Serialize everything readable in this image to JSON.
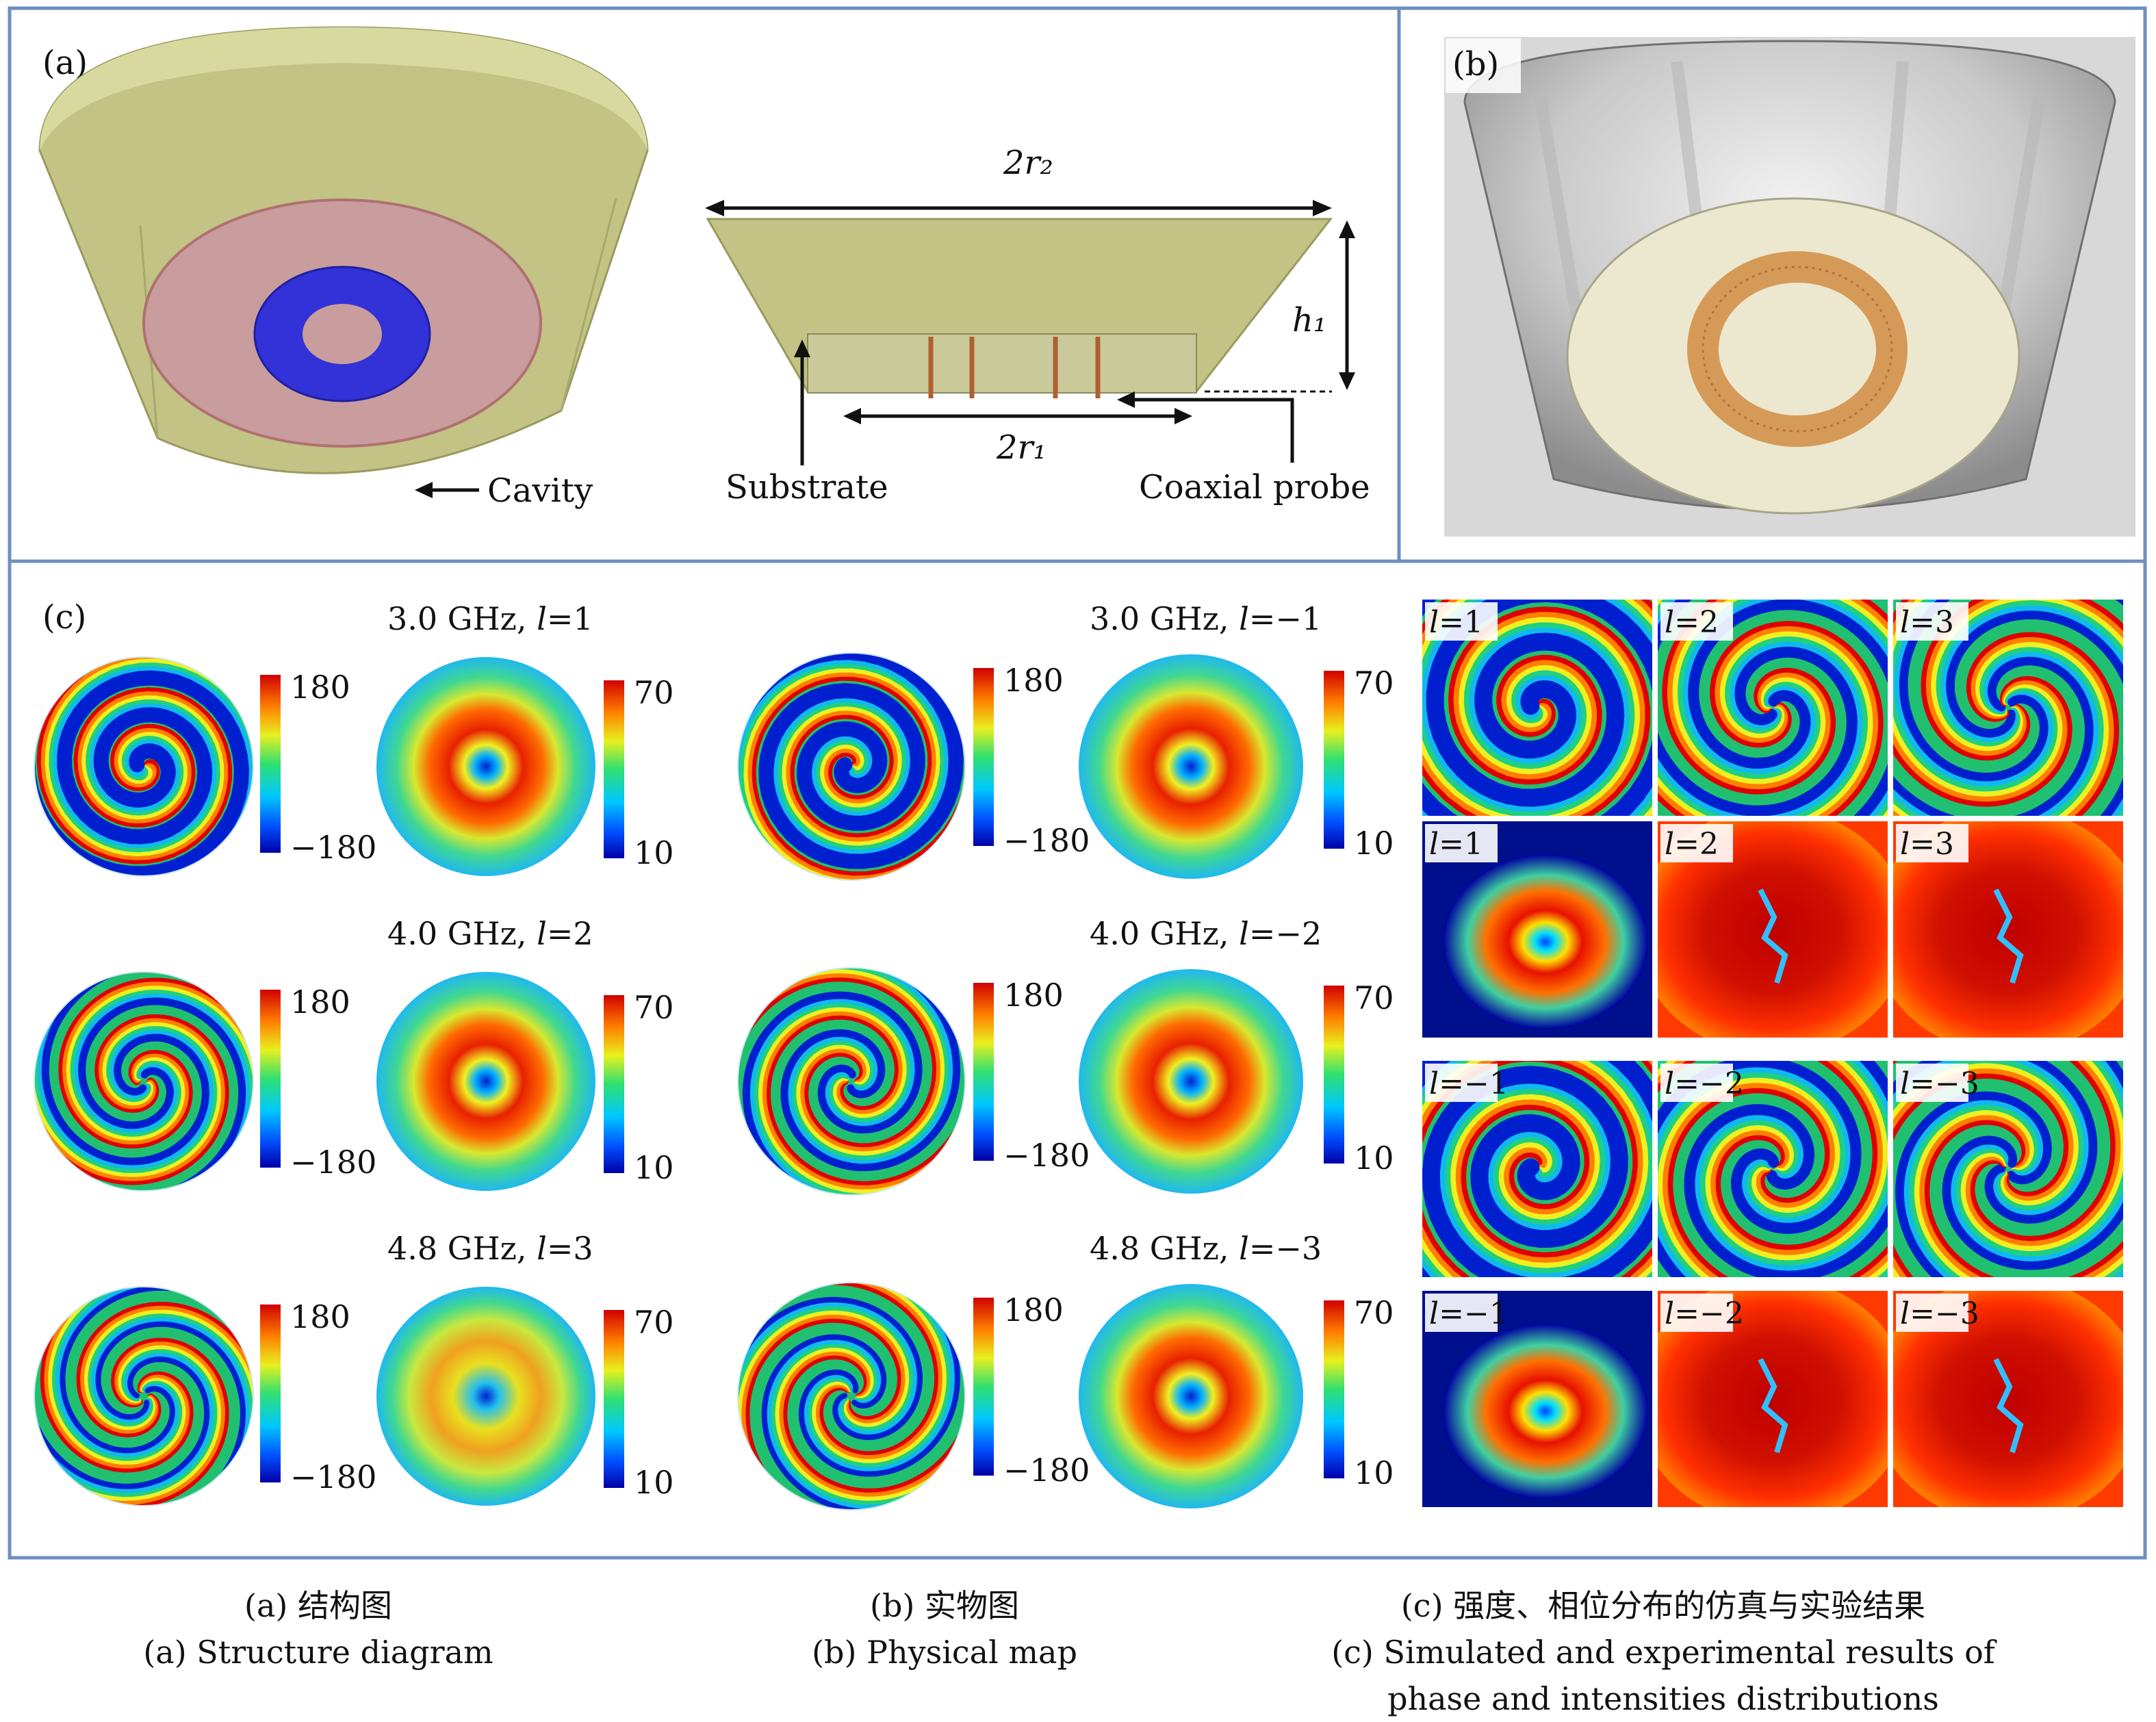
{
  "panel_a": {
    "label": "(a)",
    "dim_top": "2r₂",
    "dim_height": "h₁",
    "dim_bottom": "2r₁",
    "cavity": "Cavity",
    "substrate": "Substrate",
    "probe": "Coaxial probe"
  },
  "panel_b": {
    "label": "(b)"
  },
  "panel_c": {
    "label": "(c)",
    "rows": [
      {
        "left_title": "3.0 GHz, l=1",
        "right_title": "3.0 GHz, l=−1",
        "phase_max": "180",
        "phase_min": "−180",
        "int_max": "70",
        "int_min": "10"
      },
      {
        "left_title": "4.0 GHz, l=2",
        "right_title": "4.0 GHz, l=−2",
        "phase_max": "180",
        "phase_min": "−180",
        "int_max": "70",
        "int_min": "10"
      },
      {
        "left_title": "4.8 GHz, l=3",
        "right_title": "4.8 GHz, l=−3",
        "phase_max": "180",
        "phase_min": "−180",
        "int_max": "70",
        "int_min": "10"
      }
    ],
    "grid_labels": [
      [
        "l=1",
        "l=2",
        "l=3"
      ],
      [
        "l=1",
        "l=2",
        "l=3"
      ],
      [
        "l=−1",
        "l=−2",
        "l=−3"
      ],
      [
        "l=−1",
        "l=−2",
        "l=−3"
      ]
    ]
  },
  "captions": [
    {
      "cn": "(a) 结构图",
      "en": [
        "(a) Structure diagram"
      ]
    },
    {
      "cn": "(b) 实物图",
      "en": [
        "(b) Physical map"
      ]
    },
    {
      "cn": "(c) 强度、相位分布的仿真与实验结果",
      "en": [
        "(c) Simulated and experimental results of",
        "phase and intensities distributions"
      ]
    }
  ],
  "colors": {
    "frame": "#6f8fc0",
    "cavity": "#c8c98a",
    "substrate": "#caa0a0",
    "ring": "#3a3ad0",
    "jet_low": "#0010c0",
    "jet_high": "#c00000"
  }
}
